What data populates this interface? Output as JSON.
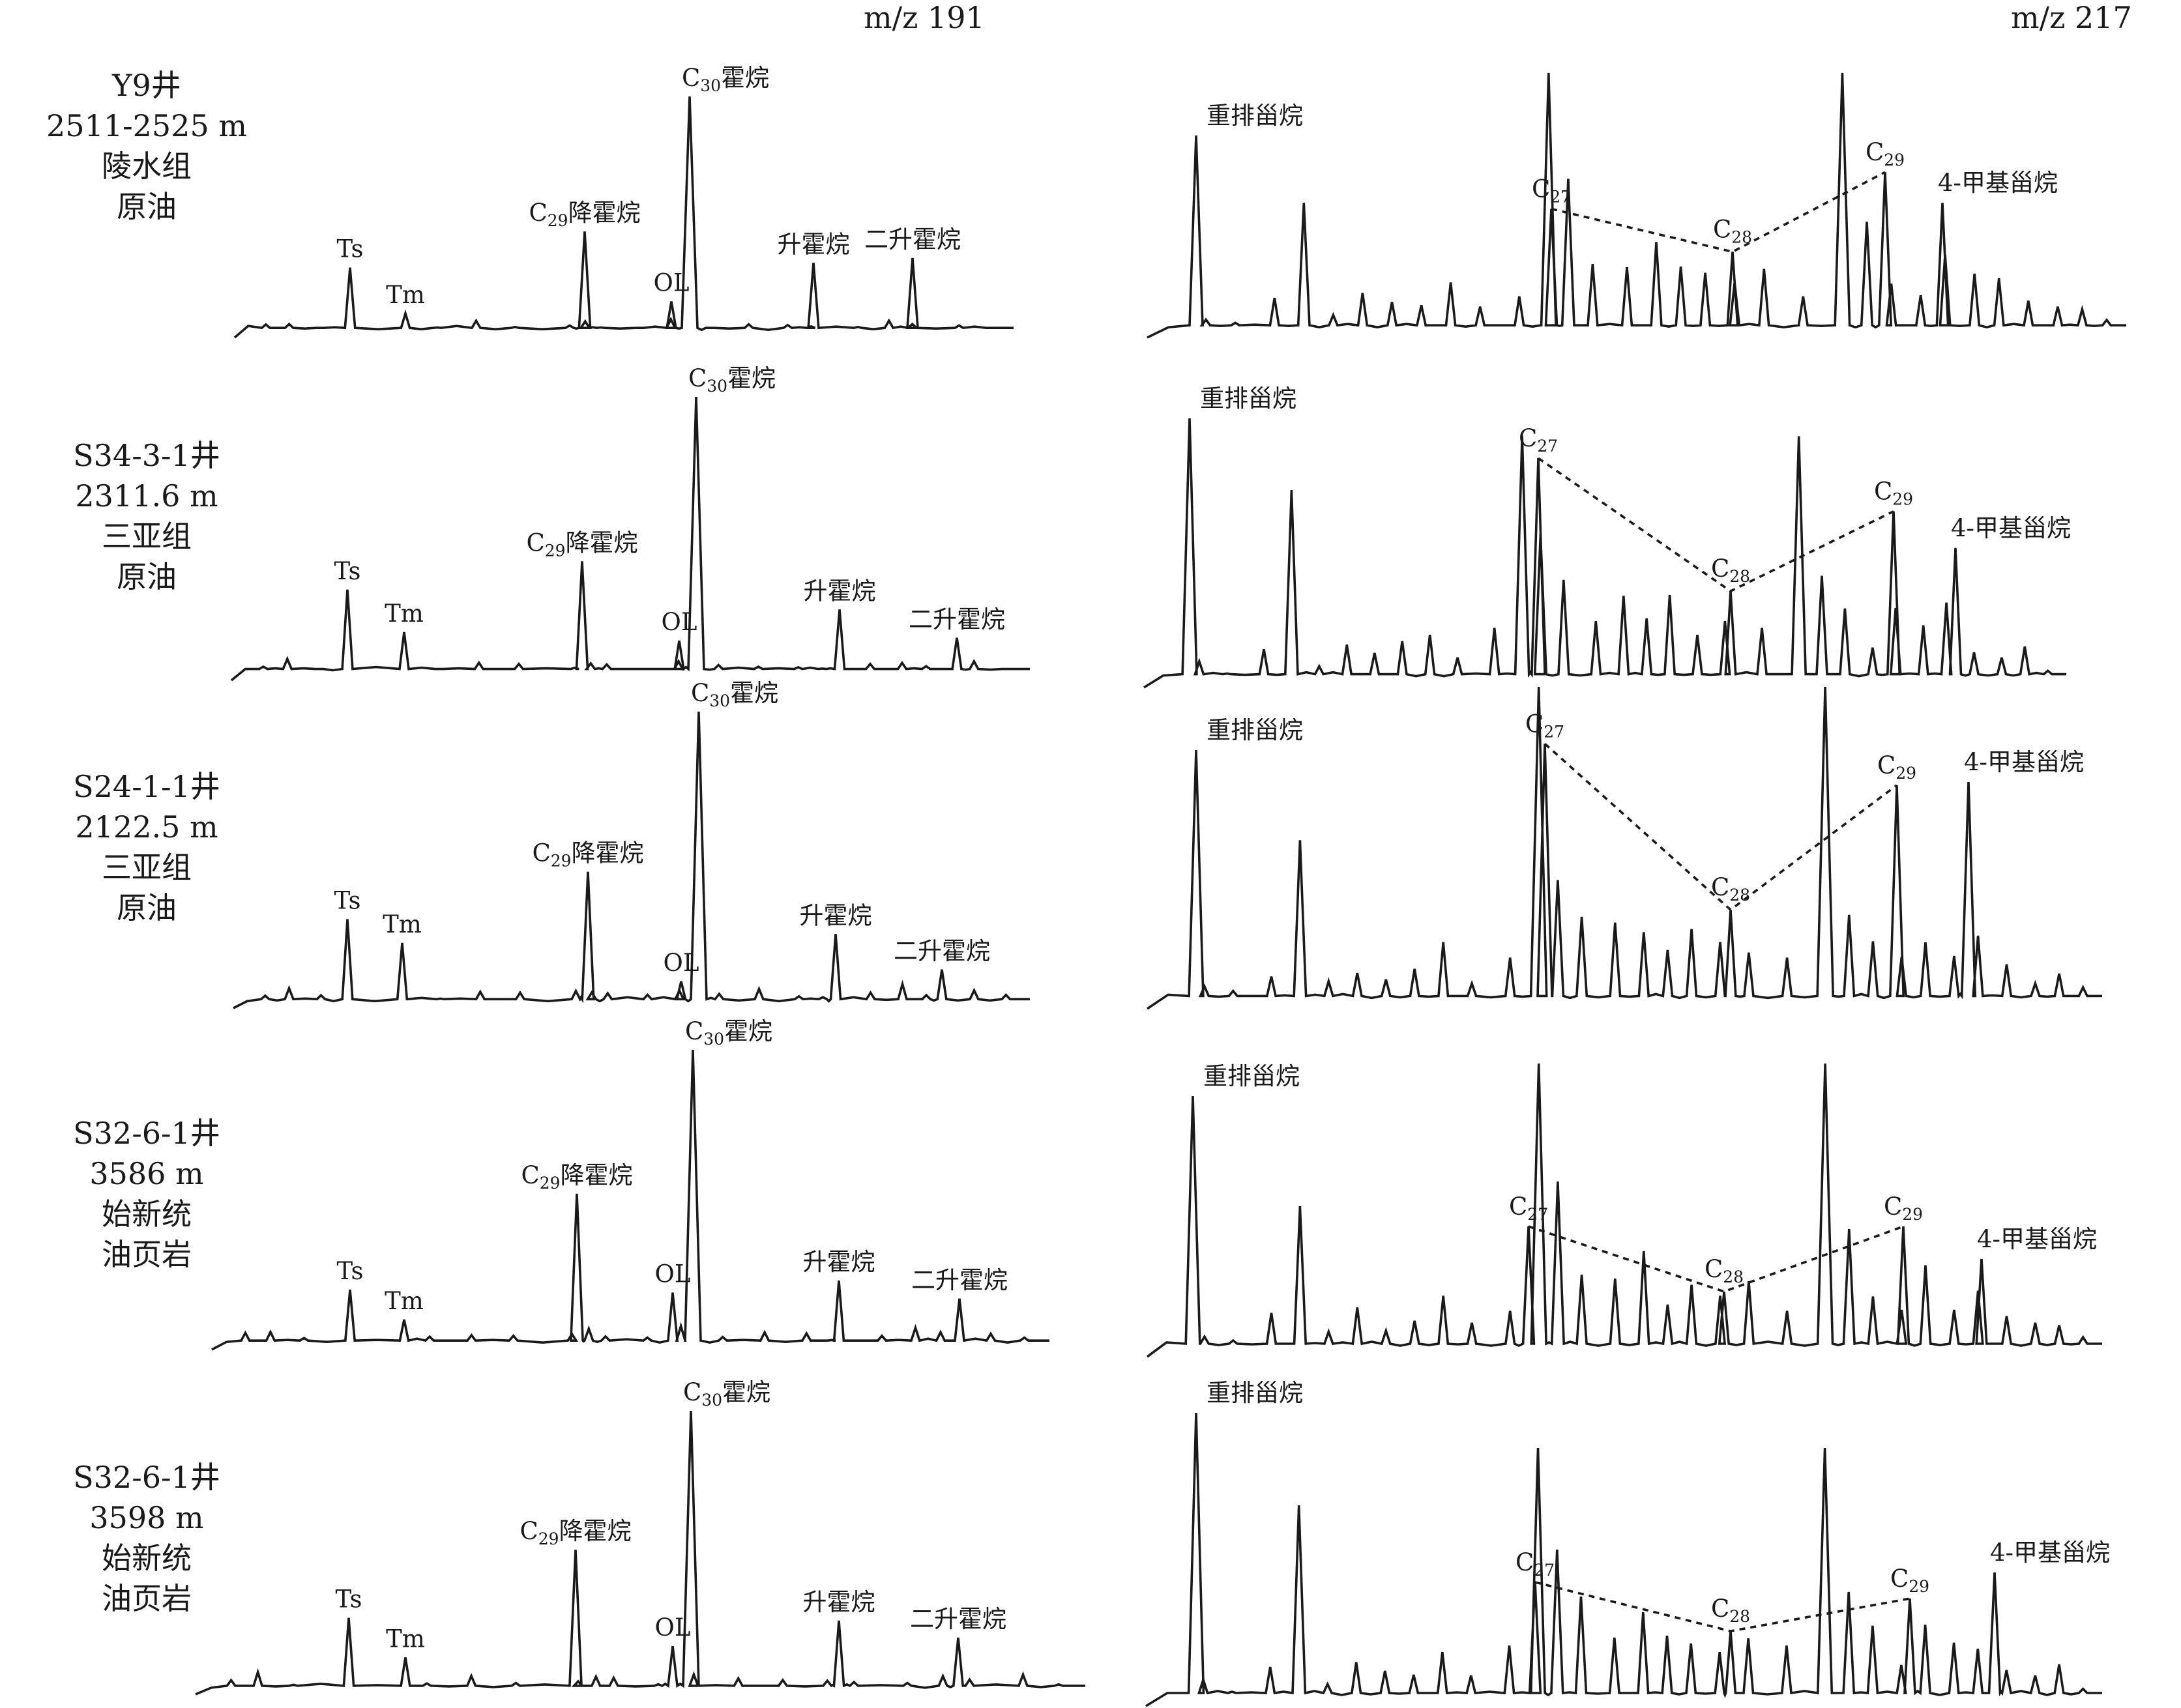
{
  "chart_data": {
    "type": "line",
    "headers": {
      "left": "m/z 191",
      "right": "m/z 217"
    },
    "samples": [
      {
        "lines": [
          "Y9井",
          "2511-2525 m",
          "陵水组",
          "原油"
        ]
      },
      {
        "lines": [
          "S34-3-1井",
          "2311.6 m",
          "三亚组",
          "原油"
        ]
      },
      {
        "lines": [
          "S24-1-1井",
          "2122.5 m",
          "三亚组",
          "原油"
        ]
      },
      {
        "lines": [
          "S32-6-1井",
          "3586 m",
          "始新统",
          "油页岩"
        ]
      },
      {
        "lines": [
          "S32-6-1井",
          "3598 m",
          "始新统",
          "油页岩"
        ]
      }
    ],
    "hopane_peak_labels": [
      {
        "base": "Ts",
        "sub": "",
        "suffix": ""
      },
      {
        "base": "Tm",
        "sub": "",
        "suffix": ""
      },
      {
        "base": "C",
        "sub": "29",
        "suffix": "降霍烷"
      },
      {
        "base": "OL",
        "sub": "",
        "suffix": ""
      },
      {
        "base": "C",
        "sub": "30",
        "suffix": "霍烷"
      },
      {
        "base": "升霍烷",
        "sub": "",
        "suffix": ""
      },
      {
        "base": "二升霍烷",
        "sub": "",
        "suffix": ""
      }
    ],
    "sterane_peak_labels": [
      {
        "base": "重排甾烷",
        "sub": "",
        "suffix": ""
      },
      {
        "base": "C",
        "sub": "27",
        "suffix": ""
      },
      {
        "base": "C",
        "sub": "28",
        "suffix": ""
      },
      {
        "base": "C",
        "sub": "29",
        "suffix": ""
      },
      {
        "base": "4-甲基甾烷",
        "sub": "",
        "suffix": ""
      }
    ],
    "hopane_peaks": [
      "Ts",
      "Tm",
      "C29降霍烷",
      "OL",
      "C30霍烷",
      "升霍烷",
      "二升霍烷"
    ],
    "sterane_peaks": [
      "重排甾烷",
      "C27",
      "C28",
      "C29",
      "4-甲基甾烷"
    ],
    "traces": [
      {
        "hopane": {
          "baseline": 0.04,
          "heights": {
            "Ts": 0.29,
            "Tm": 0.1,
            "C29降霍烷": 0.44,
            "OL": 0.15,
            "C30霍烷": 1.0,
            "升霍烷": 0.31,
            "二升霍烷": 0.33
          }
        },
        "sterane": {
          "baseline": 0.04,
          "heights": {
            "重排甾烷": 0.66,
            "C27": 0.42,
            "C28": 0.28,
            "C29": 0.54,
            "4-甲基甾烷": 0.44
          }
        }
      },
      {
        "hopane": {
          "baseline": 0.04,
          "heights": {
            "Ts": 0.32,
            "Tm": 0.17,
            "C29降霍烷": 0.42,
            "OL": 0.14,
            "C30霍烷": 1.0,
            "升霍烷": 0.25,
            "二升霍烷": 0.15
          }
        },
        "sterane": {
          "baseline": 0.04,
          "heights": {
            "重排甾烷": 0.81,
            "C27": 0.69,
            "C28": 0.29,
            "C29": 0.53,
            "4-甲基甾烷": 0.42
          }
        }
      },
      {
        "hopane": {
          "baseline": 0.03,
          "heights": {
            "Ts": 0.3,
            "Tm": 0.22,
            "C29降霍烷": 0.46,
            "OL": 0.09,
            "C30霍烷": 1.0,
            "升霍烷": 0.25,
            "二升霍烷": 0.13
          }
        },
        "sterane": {
          "baseline": 0.04,
          "heights": {
            "重排甾烷": 0.81,
            "C27": 0.83,
            "C28": 0.31,
            "C29": 0.7,
            "4-甲基甾烷": 0.71
          }
        }
      },
      {
        "hopane": {
          "baseline": 0.03,
          "heights": {
            "Ts": 0.2,
            "Tm": 0.1,
            "C29降霍烷": 0.52,
            "OL": 0.19,
            "C30霍烷": 1.0,
            "升霍烷": 0.23,
            "二升霍烷": 0.17
          }
        },
        "sterane": {
          "baseline": 0.04,
          "heights": {
            "重排甾烷": 0.8,
            "C27": 0.4,
            "C28": 0.2,
            "C29": 0.4,
            "4-甲基甾烷": 0.3
          }
        }
      },
      {
        "hopane": {
          "baseline": 0.03,
          "heights": {
            "Ts": 0.27,
            "Tm": 0.13,
            "C29降霍烷": 0.51,
            "OL": 0.17,
            "C30霍烷": 1.0,
            "升霍烷": 0.26,
            "二升霍烷": 0.2
          }
        },
        "sterane": {
          "baseline": 0.04,
          "heights": {
            "重排甾烷": 0.9,
            "C27": 0.38,
            "C28": 0.23,
            "C29": 0.33,
            "4-甲基甾烷": 0.41
          }
        }
      }
    ]
  }
}
